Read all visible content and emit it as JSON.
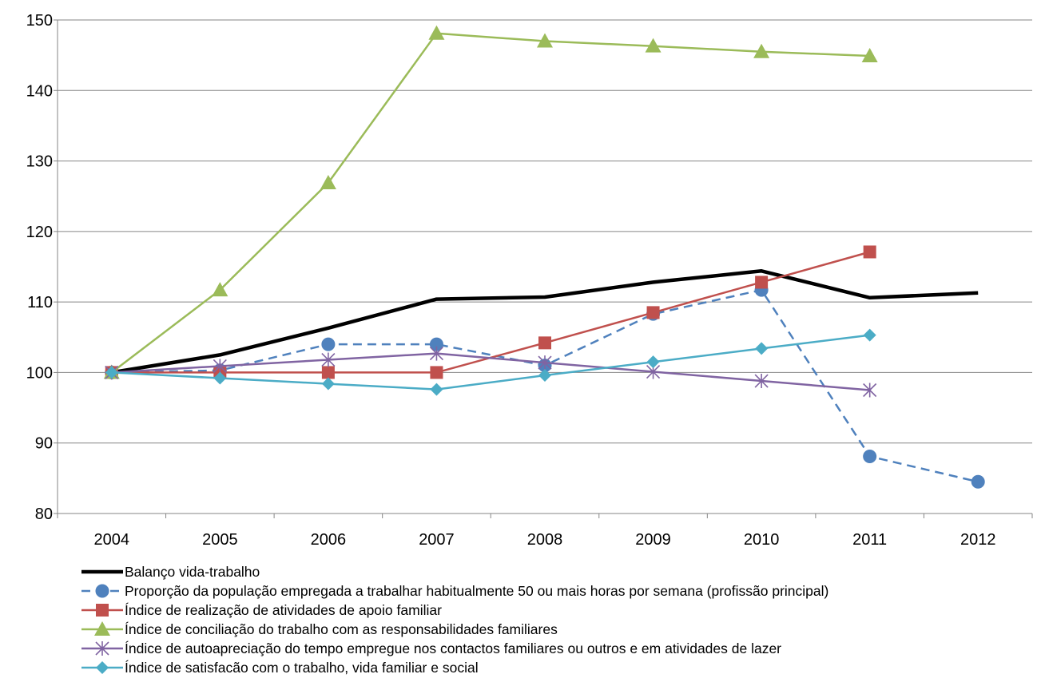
{
  "chart_data": {
    "type": "line",
    "title": "",
    "xlabel": "",
    "ylabel": "",
    "categories": [
      "2004",
      "2005",
      "2006",
      "2007",
      "2008",
      "2009",
      "2010",
      "2011",
      "2012"
    ],
    "ylim": [
      80,
      150
    ],
    "yticks": [
      80,
      90,
      100,
      110,
      120,
      130,
      140,
      150
    ],
    "grid": "horizontal",
    "legend_position": "bottom",
    "series": [
      {
        "name": "Balanço vida-trabalho",
        "values": [
          100,
          102.5,
          106.3,
          110.4,
          110.7,
          112.8,
          114.4,
          110.6,
          111.3
        ],
        "color": "#000000",
        "marker": "none",
        "dash": "solid",
        "width": 4.5
      },
      {
        "name": "Proporção da população empregada a trabalhar habitualmente 50 ou mais horas por semana (profissão principal)",
        "values": [
          100,
          100.3,
          104,
          104,
          101,
          108.3,
          111.7,
          88.1,
          84.5
        ],
        "color": "#4F81BD",
        "marker": "circle",
        "dash": "dashed",
        "width": 2.5
      },
      {
        "name": "Índice de realização de atividades de apoio familiar",
        "values": [
          100,
          100,
          100,
          100,
          104.2,
          108.5,
          112.8,
          117.1,
          null
        ],
        "color": "#C0504D",
        "marker": "square",
        "dash": "solid",
        "width": 2.5
      },
      {
        "name": "Índice de conciliação do trabalho com as responsabilidades familiares",
        "values": [
          100,
          111.7,
          126.9,
          148.1,
          147,
          146.3,
          145.5,
          144.9,
          null
        ],
        "color": "#9BBB59",
        "marker": "triangle",
        "dash": "solid",
        "width": 2.5
      },
      {
        "name": "Índice de autoapreciação do tempo empregue nos contactos familiares ou outros e em atividades de lazer",
        "values": [
          100,
          100.9,
          101.8,
          102.7,
          101.4,
          100.1,
          98.8,
          97.5,
          null
        ],
        "color": "#8064A2",
        "marker": "star",
        "dash": "solid",
        "width": 2.5
      },
      {
        "name": "Índice de satisfacão com o trabalho, vida familiar e social",
        "values": [
          100,
          99.2,
          98.4,
          97.6,
          99.6,
          101.5,
          103.4,
          105.3,
          null
        ],
        "color": "#4BACC6",
        "marker": "diamond",
        "dash": "solid",
        "width": 2.5
      }
    ]
  }
}
